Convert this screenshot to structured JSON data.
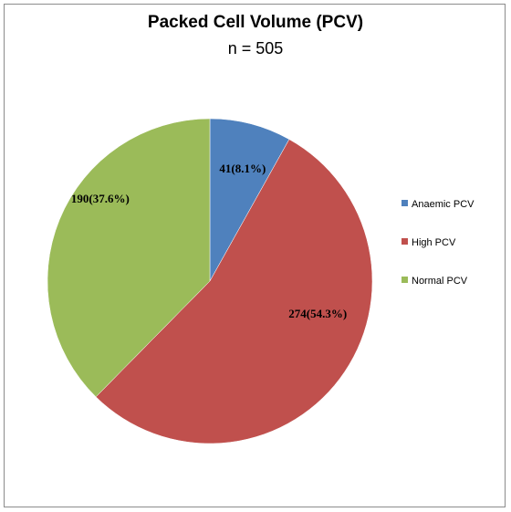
{
  "chart_data": {
    "type": "pie",
    "title": "Packed Cell Volume (PCV)",
    "subtitle": "n = 505",
    "slices": [
      {
        "name": "Anaemic PCV",
        "value": 41,
        "label": "41(8.1%)",
        "color": "#4f81bd"
      },
      {
        "name": "High PCV",
        "value": 274,
        "label": "274(54.3%)",
        "color": "#c0504d"
      },
      {
        "name": "Normal PCV",
        "value": 190,
        "label": "190(37.6%)",
        "color": "#9bbb59"
      }
    ],
    "legend_placement": "right",
    "start_angle": "12 o'clock",
    "direction": "clockwise"
  }
}
